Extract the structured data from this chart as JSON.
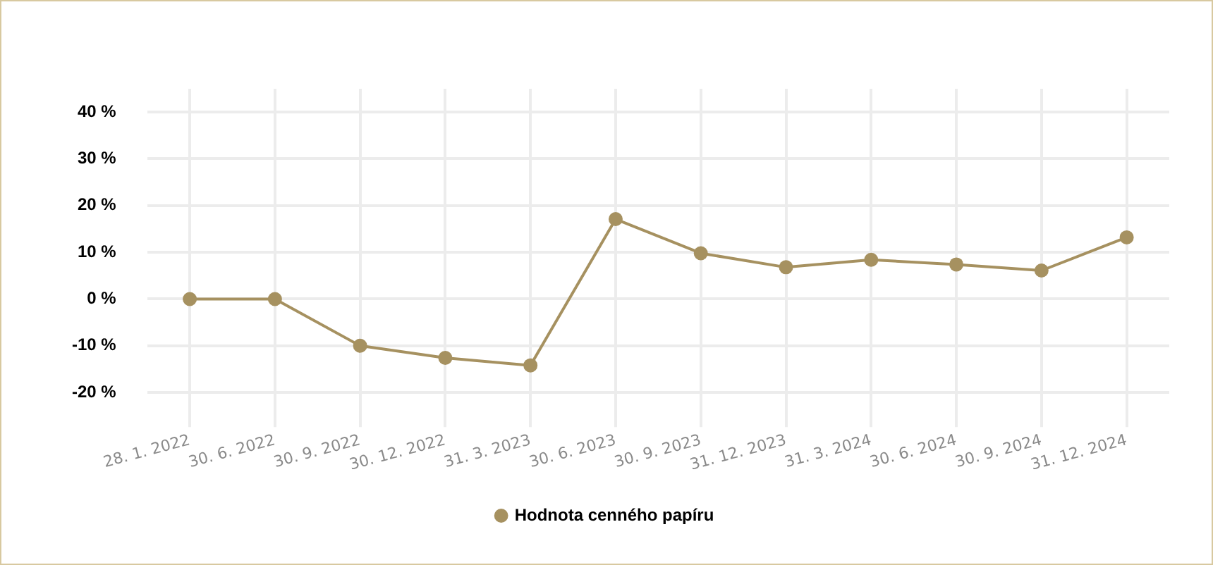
{
  "chart_data": {
    "type": "line",
    "categories": [
      "28. 1. 2022",
      "30. 6. 2022",
      "30. 9. 2022",
      "30. 12. 2022",
      "31. 3. 2023",
      "30. 6. 2023",
      "30. 9. 2023",
      "31. 12. 2023",
      "31. 3. 2024",
      "30. 6. 2024",
      "30. 9. 2024",
      "31. 12. 2024"
    ],
    "series": [
      {
        "name": "Hodnota cenného papíru",
        "color": "#a69160",
        "values": [
          0,
          0,
          -10,
          -12.6,
          -14.2,
          17.1,
          9.8,
          6.8,
          8.4,
          7.4,
          6.1,
          13.2
        ]
      }
    ],
    "ylim": [
      -25,
      45
    ],
    "yticks": [
      {
        "value": -20,
        "label": "-20 %"
      },
      {
        "value": -10,
        "label": "-10 %"
      },
      {
        "value": 0,
        "label": "0 %"
      },
      {
        "value": 10,
        "label": "10 %"
      },
      {
        "value": 20,
        "label": "20 %"
      },
      {
        "value": 30,
        "label": "30 %"
      },
      {
        "value": 40,
        "label": "40 %"
      }
    ],
    "grid": true,
    "legend": "bottom",
    "marker": "circle",
    "line_style": "solid"
  }
}
